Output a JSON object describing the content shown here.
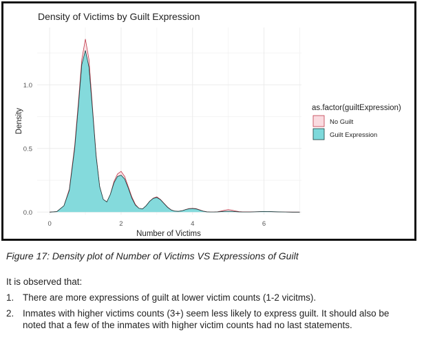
{
  "chart_data": {
    "type": "area",
    "title": "Density of Victims by Guilt Expression",
    "xlabel": "Number of Victims",
    "ylabel": "Density",
    "xlim": [
      -0.35,
      7.05
    ],
    "ylim": [
      -0.02,
      1.45
    ],
    "x_ticks": [
      0,
      2,
      4,
      6
    ],
    "y_ticks": [
      0.0,
      0.5,
      1.0
    ],
    "y_tick_labels": [
      "0.0",
      "0.5",
      "1.0"
    ],
    "grid": true,
    "legend_title": "as.factor(guiltExpression)",
    "legend_position": "right",
    "series": [
      {
        "name": "No Guilt",
        "color": "#f8766d",
        "fill": "#fadbe0",
        "x": [
          0.0,
          0.2,
          0.4,
          0.55,
          0.7,
          0.8,
          0.9,
          1.0,
          1.1,
          1.2,
          1.3,
          1.4,
          1.5,
          1.6,
          1.7,
          1.8,
          1.9,
          2.0,
          2.1,
          2.2,
          2.3,
          2.4,
          2.5,
          2.6,
          2.7,
          2.8,
          2.9,
          3.0,
          3.1,
          3.2,
          3.3,
          3.4,
          3.5,
          3.6,
          3.7,
          3.8,
          3.9,
          4.0,
          4.1,
          4.2,
          4.3,
          4.4,
          4.5,
          4.6,
          4.7,
          4.8,
          4.9,
          5.0,
          5.1,
          5.2,
          5.3,
          5.4,
          5.6,
          5.8,
          6.0,
          6.2,
          6.4,
          6.6,
          6.8,
          7.0
        ],
        "y": [
          0.0,
          0.004,
          0.05,
          0.18,
          0.52,
          0.85,
          1.2,
          1.36,
          1.2,
          0.82,
          0.45,
          0.2,
          0.1,
          0.08,
          0.14,
          0.24,
          0.3,
          0.32,
          0.28,
          0.2,
          0.12,
          0.06,
          0.03,
          0.025,
          0.05,
          0.085,
          0.11,
          0.12,
          0.1,
          0.07,
          0.04,
          0.018,
          0.008,
          0.006,
          0.01,
          0.02,
          0.028,
          0.03,
          0.027,
          0.018,
          0.008,
          0.003,
          0.001,
          0.001,
          0.003,
          0.008,
          0.015,
          0.02,
          0.016,
          0.009,
          0.004,
          0.002,
          0.002,
          0.003,
          0.004,
          0.003,
          0.001,
          0.001,
          0.0,
          0.0
        ]
      },
      {
        "name": "Guilt Expression",
        "color": "#00bfc4",
        "fill": "#7dd9db",
        "x": [
          0.0,
          0.2,
          0.4,
          0.55,
          0.7,
          0.8,
          0.9,
          1.0,
          1.1,
          1.2,
          1.3,
          1.4,
          1.5,
          1.6,
          1.7,
          1.8,
          1.9,
          2.0,
          2.1,
          2.2,
          2.3,
          2.4,
          2.5,
          2.6,
          2.7,
          2.8,
          2.9,
          3.0,
          3.1,
          3.2,
          3.3,
          3.4,
          3.5,
          3.6,
          3.7,
          3.8,
          3.9,
          4.0,
          4.1,
          4.2,
          4.3,
          4.4,
          4.5,
          4.6,
          4.7,
          4.8,
          4.9,
          5.0,
          5.1,
          5.2,
          5.3,
          5.4,
          5.6,
          5.8,
          6.0,
          6.2,
          6.4,
          6.6,
          6.8,
          7.0
        ],
        "y": [
          0.0,
          0.004,
          0.05,
          0.17,
          0.5,
          0.82,
          1.16,
          1.27,
          1.14,
          0.8,
          0.44,
          0.2,
          0.1,
          0.08,
          0.14,
          0.23,
          0.28,
          0.29,
          0.26,
          0.19,
          0.11,
          0.055,
          0.03,
          0.025,
          0.05,
          0.085,
          0.108,
          0.115,
          0.098,
          0.068,
          0.038,
          0.017,
          0.008,
          0.006,
          0.01,
          0.019,
          0.026,
          0.028,
          0.025,
          0.016,
          0.007,
          0.002,
          0.001,
          0.001,
          0.002,
          0.004,
          0.006,
          0.007,
          0.006,
          0.004,
          0.002,
          0.001,
          0.001,
          0.003,
          0.005,
          0.004,
          0.002,
          0.001,
          0.0,
          0.0
        ]
      }
    ]
  },
  "caption": "Figure 17: Density plot of Number of Victims VS Expressions of Guilt",
  "intro": "It is observed that:",
  "points": [
    {
      "num": "1.",
      "text": "There are more expressions of guilt at lower victim counts (1-2 vicitms)."
    },
    {
      "num": "2.",
      "text": "Inmates with higher victims counts (3+) seem less likely to express guilt. It should also be noted that a few of the inmates with higher victim counts had no last statements."
    }
  ]
}
